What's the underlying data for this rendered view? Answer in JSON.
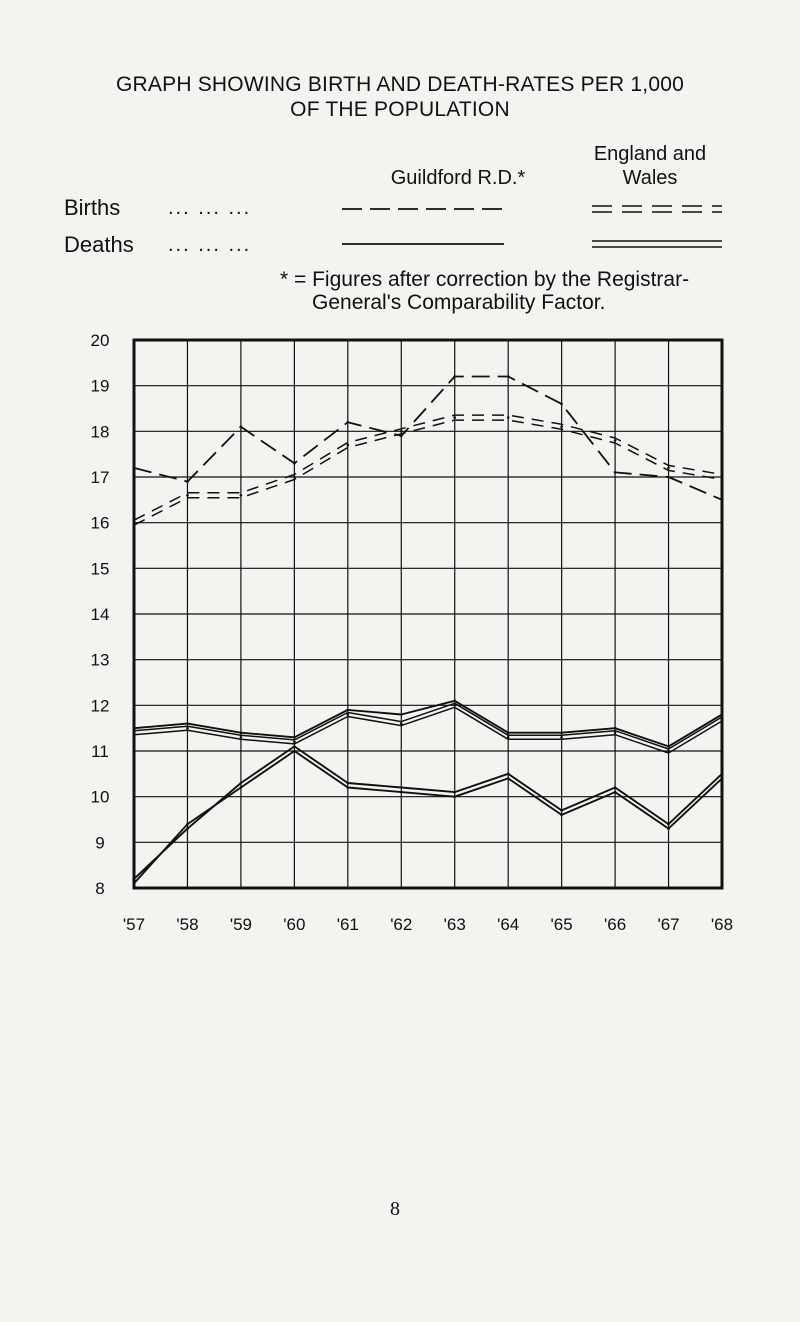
{
  "header": {
    "title_line1": "GRAPH SHOWING BIRTH AND DEATH-RATES PER 1,000",
    "title_line2": "OF THE POPULATION"
  },
  "legend": {
    "col_local": "Guildford R.D.*",
    "col_national_line1": "England and",
    "col_national_line2": "Wales",
    "rows": [
      {
        "label": "Births",
        "dots": "... ... ..."
      },
      {
        "label": "Deaths",
        "dots": "... ... ..."
      }
    ],
    "footnote_line1": "* = Figures after correction by the Registrar-",
    "footnote_line2": "General's Comparability Factor."
  },
  "page_number": "8",
  "colors": {
    "ink": "#111111",
    "paper": "#f4f3ef"
  },
  "chart_data": {
    "type": "line",
    "categories": [
      "'57",
      "'58",
      "'59",
      "'60",
      "'61",
      "'62",
      "'63",
      "'64",
      "'65",
      "'66",
      "'67",
      "'68"
    ],
    "ylim": [
      8,
      20
    ],
    "yticks": [
      20,
      19,
      18,
      17,
      16,
      15,
      14,
      13,
      12,
      11,
      10,
      9,
      8
    ],
    "grid": true,
    "series": [
      {
        "values": [
          17.2,
          16.9,
          18.1,
          17.3,
          18.2,
          17.9,
          19.2,
          19.2,
          18.6,
          17.1,
          17.0,
          16.5
        ],
        "style": "dashed"
      },
      {
        "values": [
          16.0,
          16.6,
          16.6,
          17.0,
          17.7,
          18.0,
          18.3,
          18.3,
          18.1,
          17.8,
          17.2,
          17.0
        ],
        "style": "double-dashed"
      },
      {
        "values": [
          11.5,
          11.6,
          11.4,
          11.3,
          11.9,
          11.8,
          12.1,
          11.4,
          11.4,
          11.5,
          11.1,
          11.8
        ],
        "style": "solid"
      },
      {
        "values": [
          11.4,
          11.5,
          11.3,
          11.2,
          11.8,
          11.6,
          12.0,
          11.3,
          11.3,
          11.4,
          11.0,
          11.7
        ],
        "style": "double-solid"
      },
      {
        "values": [
          8.2,
          9.3,
          10.3,
          11.1,
          10.3,
          10.2,
          10.1,
          10.5,
          9.7,
          10.2,
          9.4,
          10.5
        ],
        "style": "solid"
      },
      {
        "values": [
          8.1,
          9.4,
          10.2,
          11.0,
          10.2,
          10.1,
          10.0,
          10.4,
          9.6,
          10.1,
          9.3,
          10.4
        ],
        "style": "solid"
      }
    ]
  }
}
